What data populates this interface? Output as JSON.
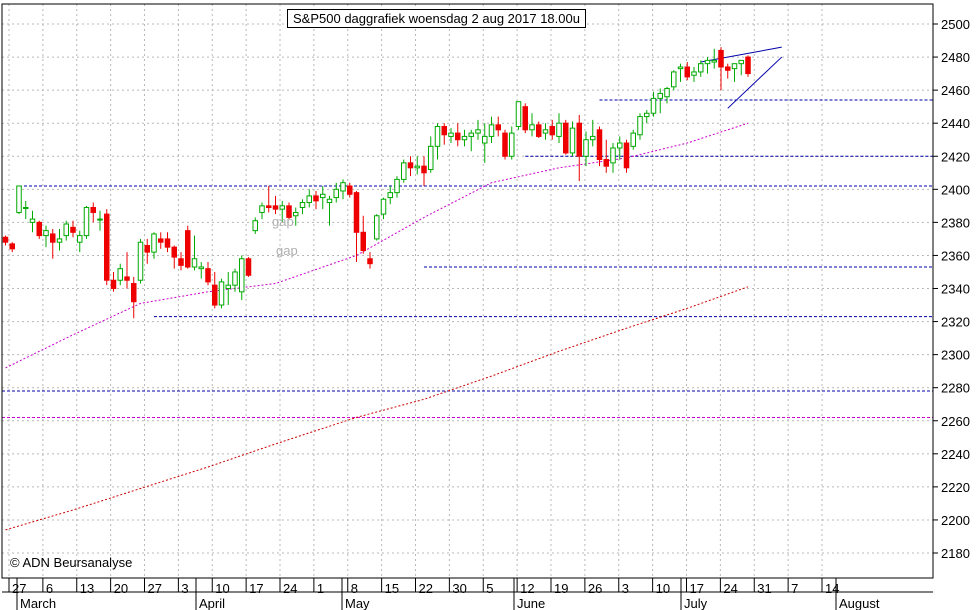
{
  "chart_data": {
    "type": "candlestick",
    "title": "S&P500 daggrafiek woensdag 2 aug 2017 18.00u",
    "copyright": "© ADN Beursanalyse",
    "colors": {
      "up": "#00aa00",
      "down": "#ee0000",
      "ma_short": "#cc00cc",
      "ma_long": "#cc0000",
      "support": "#0000aa",
      "grid": "#b8b8b8"
    },
    "ylim": [
      2170,
      2505
    ],
    "y_ticks": [
      2180,
      2200,
      2220,
      2240,
      2260,
      2280,
      2300,
      2320,
      2340,
      2360,
      2380,
      2400,
      2420,
      2440,
      2460,
      2480,
      2500
    ],
    "x_ticks": [
      "27",
      "6",
      "13",
      "20",
      "27",
      "3",
      "10",
      "17",
      "24",
      "1",
      "8",
      "15",
      "22",
      "30",
      "5",
      "12",
      "19",
      "26",
      "3",
      "10",
      "17",
      "24",
      "31",
      "7",
      "14"
    ],
    "months": [
      "March",
      "April",
      "May",
      "June",
      "July",
      "August"
    ],
    "grid": true,
    "candles": [
      [
        2371,
        2372,
        2366,
        2368
      ],
      [
        2367,
        2368,
        2362,
        2364
      ],
      [
        2386,
        2402,
        2385,
        2402
      ],
      [
        2389,
        2393,
        2382,
        2389
      ],
      [
        2380,
        2387,
        2374,
        2382
      ],
      [
        2380,
        2381,
        2370,
        2372
      ],
      [
        2372,
        2378,
        2365,
        2375
      ],
      [
        2373,
        2376,
        2358,
        2368
      ],
      [
        2368,
        2376,
        2363,
        2370
      ],
      [
        2372,
        2381,
        2369,
        2379
      ],
      [
        2377,
        2381,
        2371,
        2374
      ],
      [
        2368,
        2375,
        2362,
        2372
      ],
      [
        2372,
        2390,
        2370,
        2389
      ],
      [
        2389,
        2392,
        2380,
        2386
      ],
      [
        2382,
        2387,
        2375,
        2382
      ],
      [
        2385,
        2388,
        2342,
        2345
      ],
      [
        2345,
        2350,
        2338,
        2340
      ],
      [
        2345,
        2355,
        2342,
        2352
      ],
      [
        2347,
        2362,
        2340,
        2345
      ],
      [
        2343,
        2347,
        2322,
        2332
      ],
      [
        2345,
        2370,
        2343,
        2368
      ],
      [
        2366,
        2370,
        2355,
        2362
      ],
      [
        2362,
        2374,
        2358,
        2373
      ],
      [
        2370,
        2374,
        2364,
        2368
      ],
      [
        2370,
        2374,
        2362,
        2365
      ],
      [
        2365,
        2366,
        2352,
        2359
      ],
      [
        2358,
        2362,
        2351,
        2354
      ],
      [
        2375,
        2378,
        2352,
        2353
      ],
      [
        2353,
        2372,
        2351,
        2358
      ],
      [
        2352,
        2356,
        2346,
        2353
      ],
      [
        2352,
        2356,
        2342,
        2344
      ],
      [
        2342,
        2350,
        2328,
        2330
      ],
      [
        2330,
        2346,
        2328,
        2344
      ],
      [
        2340,
        2350,
        2330,
        2342
      ],
      [
        2342,
        2352,
        2338,
        2350
      ],
      [
        2338,
        2360,
        2333,
        2358
      ],
      [
        2358,
        2359,
        2347,
        2348
      ],
      [
        2375,
        2383,
        2373,
        2381
      ],
      [
        2386,
        2392,
        2382,
        2390
      ],
      [
        2390,
        2402,
        2386,
        2389
      ],
      [
        2390,
        2396,
        2385,
        2388
      ],
      [
        2388,
        2393,
        2380,
        2390
      ],
      [
        2390,
        2392,
        2382,
        2383
      ],
      [
        2384,
        2389,
        2378,
        2386
      ],
      [
        2389,
        2394,
        2385,
        2392
      ],
      [
        2392,
        2400,
        2389,
        2396
      ],
      [
        2396,
        2399,
        2388,
        2393
      ],
      [
        2395,
        2402,
        2388,
        2397
      ],
      [
        2392,
        2396,
        2378,
        2394
      ],
      [
        2395,
        2404,
        2392,
        2400
      ],
      [
        2399,
        2406,
        2394,
        2404
      ],
      [
        2402,
        2404,
        2395,
        2397
      ],
      [
        2398,
        2399,
        2356,
        2374
      ],
      [
        2374,
        2384,
        2361,
        2363
      ],
      [
        2358,
        2362,
        2352,
        2355
      ],
      [
        2370,
        2385,
        2369,
        2384
      ],
      [
        2385,
        2395,
        2382,
        2394
      ],
      [
        2395,
        2402,
        2391,
        2398
      ],
      [
        2398,
        2408,
        2395,
        2406
      ],
      [
        2406,
        2418,
        2404,
        2416
      ],
      [
        2416,
        2420,
        2408,
        2413
      ],
      [
        2413,
        2420,
        2409,
        2414
      ],
      [
        2414,
        2420,
        2402,
        2410
      ],
      [
        2412,
        2432,
        2410,
        2426
      ],
      [
        2426,
        2440,
        2418,
        2438
      ],
      [
        2438,
        2440,
        2427,
        2433
      ],
      [
        2432,
        2437,
        2428,
        2434
      ],
      [
        2434,
        2440,
        2426,
        2430
      ],
      [
        2430,
        2436,
        2426,
        2432
      ],
      [
        2432,
        2436,
        2423,
        2434
      ],
      [
        2434,
        2442,
        2430,
        2436
      ],
      [
        2428,
        2440,
        2416,
        2432
      ],
      [
        2432,
        2444,
        2428,
        2439
      ],
      [
        2439,
        2444,
        2432,
        2436
      ],
      [
        2434,
        2436,
        2418,
        2420
      ],
      [
        2420,
        2438,
        2418,
        2434
      ],
      [
        2438,
        2453,
        2436,
        2453
      ],
      [
        2450,
        2452,
        2434,
        2436
      ],
      [
        2436,
        2446,
        2432,
        2439
      ],
      [
        2439,
        2441,
        2431,
        2432
      ],
      [
        2434,
        2440,
        2430,
        2436
      ],
      [
        2438,
        2442,
        2430,
        2433
      ],
      [
        2432,
        2446,
        2428,
        2440
      ],
      [
        2440,
        2442,
        2421,
        2422
      ],
      [
        2422,
        2441,
        2420,
        2437
      ],
      [
        2440,
        2445,
        2405,
        2420
      ],
      [
        2420,
        2435,
        2414,
        2430
      ],
      [
        2430,
        2442,
        2426,
        2432
      ],
      [
        2436,
        2438,
        2414,
        2418
      ],
      [
        2418,
        2430,
        2410,
        2414
      ],
      [
        2416,
        2428,
        2410,
        2425
      ],
      [
        2425,
        2432,
        2418,
        2428
      ],
      [
        2428,
        2430,
        2410,
        2413
      ],
      [
        2426,
        2436,
        2424,
        2434
      ],
      [
        2433,
        2446,
        2430,
        2444
      ],
      [
        2444,
        2448,
        2440,
        2446
      ],
      [
        2446,
        2459,
        2444,
        2455
      ],
      [
        2455,
        2461,
        2446,
        2458
      ],
      [
        2456,
        2462,
        2452,
        2461
      ],
      [
        2462,
        2472,
        2460,
        2471
      ],
      [
        2473,
        2476,
        2465,
        2474
      ],
      [
        2474,
        2477,
        2466,
        2468
      ],
      [
        2469,
        2474,
        2465,
        2471
      ],
      [
        2471,
        2478,
        2468,
        2476
      ],
      [
        2476,
        2480,
        2470,
        2478
      ],
      [
        2477,
        2485,
        2473,
        2478
      ],
      [
        2484,
        2486,
        2460,
        2474
      ],
      [
        2474,
        2476,
        2467,
        2472
      ],
      [
        2473,
        2476,
        2465,
        2476
      ],
      [
        2476,
        2478,
        2469,
        2478
      ],
      [
        2480,
        2481,
        2468,
        2470
      ]
    ],
    "ma_short": [
      [
        0,
        2292
      ],
      [
        10,
        2312
      ],
      [
        20,
        2331
      ],
      [
        30,
        2338
      ],
      [
        40,
        2343
      ],
      [
        52,
        2360
      ],
      [
        62,
        2383
      ],
      [
        72,
        2404
      ],
      [
        82,
        2413
      ],
      [
        92,
        2419
      ],
      [
        101,
        2428
      ],
      [
        110,
        2440
      ]
    ],
    "ma_long": [
      [
        0,
        2194
      ],
      [
        10,
        2206
      ],
      [
        20,
        2219
      ],
      [
        30,
        2232
      ],
      [
        40,
        2246
      ],
      [
        52,
        2262
      ],
      [
        62,
        2273
      ],
      [
        72,
        2287
      ],
      [
        82,
        2302
      ],
      [
        92,
        2316
      ],
      [
        101,
        2328
      ],
      [
        110,
        2341
      ]
    ],
    "support_lines": [
      2402,
      2420,
      2454,
      2353,
      2323,
      2278
    ],
    "resistance_line_magenta": 2262,
    "annotations": [
      "gap",
      "gap"
    ]
  }
}
